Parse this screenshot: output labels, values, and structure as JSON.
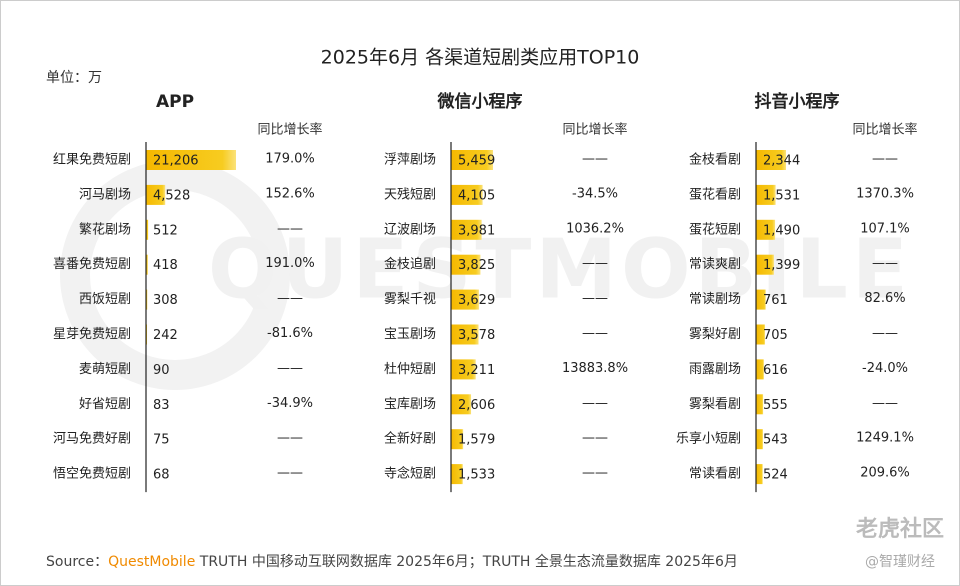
{
  "title": "2025年6月 各渠道短剧类应用TOP10",
  "unit": "单位：万",
  "source": {
    "label": "Source：",
    "brand": "QuestMobile",
    "text": " TRUTH 中国移动互联网数据库 2025年6月；TRUTH 全景生态流量数据库 2025年6月"
  },
  "watermark": "QUESTMOBILE",
  "logo": "老虎社区",
  "credit": "@智瑾财经",
  "chart_data": [
    {
      "type": "bar",
      "orientation": "horizontal",
      "title": "APP",
      "growth_header": "同比增长率",
      "color": "#f5c000",
      "categories": [
        "红果免费短剧",
        "河马剧场",
        "繁花剧场",
        "喜番免费短剧",
        "西饭短剧",
        "星芽免费短剧",
        "麦萌短剧",
        "好省短剧",
        "河马免费好剧",
        "悟空免费短剧"
      ],
      "values": [
        21206,
        4528,
        512,
        418,
        308,
        242,
        90,
        83,
        75,
        68
      ],
      "value_labels": [
        "21,206",
        "4,528",
        "512",
        "418",
        "308",
        "242",
        "90",
        "83",
        "75",
        "68"
      ],
      "growth_labels": [
        "179.0%",
        "152.6%",
        "——",
        "191.0%",
        "——",
        "-81.6%",
        "——",
        "-34.9%",
        "——",
        "——"
      ]
    },
    {
      "type": "bar",
      "orientation": "horizontal",
      "title": "微信小程序",
      "growth_header": "同比增长率",
      "color": "#f5c000",
      "categories": [
        "浮萍剧场",
        "天残短剧",
        "辽波剧场",
        "金枝追剧",
        "雾梨千视",
        "宝玉剧场",
        "杜仲短剧",
        "宝库剧场",
        "全新好剧",
        "寺念短剧"
      ],
      "values": [
        5459,
        4105,
        3981,
        3825,
        3629,
        3578,
        3211,
        2606,
        1579,
        1533
      ],
      "value_labels": [
        "5,459",
        "4,105",
        "3,981",
        "3,825",
        "3,629",
        "3,578",
        "3,211",
        "2,606",
        "1,579",
        "1,533"
      ],
      "growth_labels": [
        "——",
        "-34.5%",
        "1036.2%",
        "——",
        "——",
        "——",
        "13883.8%",
        "——",
        "——",
        "——"
      ]
    },
    {
      "type": "bar",
      "orientation": "horizontal",
      "title": "抖音小程序",
      "growth_header": "同比增长率",
      "color": "#f5c000",
      "categories": [
        "金枝看剧",
        "蛋花看剧",
        "蛋花短剧",
        "常读爽剧",
        "常读剧场",
        "雾梨好剧",
        "雨露剧场",
        "雾梨看剧",
        "乐享小短剧",
        "常读看剧"
      ],
      "values": [
        2344,
        1531,
        1490,
        1399,
        761,
        705,
        616,
        555,
        543,
        524
      ],
      "value_labels": [
        "2,344",
        "1,531",
        "1,490",
        "1,399",
        "761",
        "705",
        "616",
        "555",
        "543",
        "524"
      ],
      "growth_labels": [
        "——",
        "1370.3%",
        "107.1%",
        "——",
        "82.6%",
        "——",
        "-24.0%",
        "——",
        "1249.1%",
        "209.6%"
      ]
    }
  ]
}
